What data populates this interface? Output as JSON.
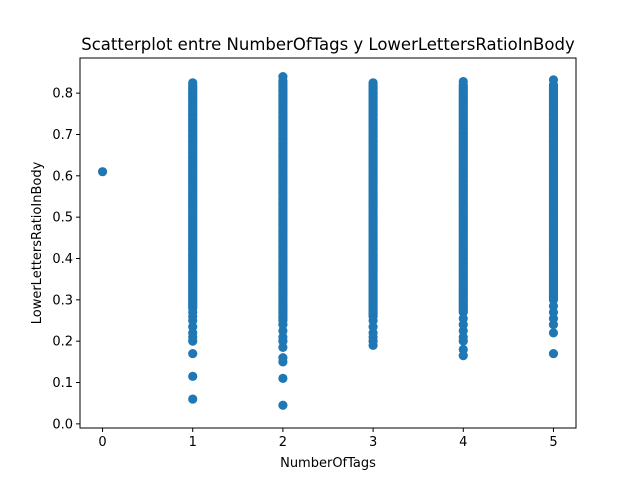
{
  "chart_data": {
    "type": "scatter",
    "title": "Scatterplot entre NumberOfTags y LowerLettersRatioInBody",
    "xlabel": "NumberOfTags",
    "ylabel": "LowerLettersRatioInBody",
    "xlim": [
      -0.25,
      5.25
    ],
    "ylim": [
      -0.01,
      0.885
    ],
    "x_ticks": [
      0,
      1,
      2,
      3,
      4,
      5
    ],
    "x_tick_labels": [
      "0",
      "1",
      "2",
      "3",
      "4",
      "5"
    ],
    "y_ticks": [
      0.0,
      0.1,
      0.2,
      0.3,
      0.4,
      0.5,
      0.6,
      0.7,
      0.8
    ],
    "y_tick_labels": [
      "0.0",
      "0.1",
      "0.2",
      "0.3",
      "0.4",
      "0.5",
      "0.6",
      "0.7",
      "0.8"
    ],
    "grid": false,
    "legend": "none",
    "marker_color": "#1f77b4",
    "columns": [
      {
        "x": 0,
        "dense_range": [],
        "points": [
          0.61
        ]
      },
      {
        "x": 1,
        "dense_range": [
          0.28,
          0.82
        ],
        "points": [
          0.06,
          0.115,
          0.17,
          0.2,
          0.21,
          0.22,
          0.235,
          0.25,
          0.26,
          0.27,
          0.825
        ]
      },
      {
        "x": 2,
        "dense_range": [
          0.25,
          0.83
        ],
        "points": [
          0.045,
          0.11,
          0.15,
          0.16,
          0.185,
          0.2,
          0.21,
          0.225,
          0.24,
          0.84
        ]
      },
      {
        "x": 3,
        "dense_range": [
          0.26,
          0.82
        ],
        "points": [
          0.19,
          0.2,
          0.21,
          0.22,
          0.235,
          0.25,
          0.825
        ]
      },
      {
        "x": 4,
        "dense_range": [
          0.27,
          0.82
        ],
        "points": [
          0.165,
          0.18,
          0.2,
          0.21,
          0.225,
          0.24,
          0.255,
          0.828
        ]
      },
      {
        "x": 5,
        "dense_range": [
          0.3,
          0.82
        ],
        "points": [
          0.17,
          0.22,
          0.24,
          0.255,
          0.27,
          0.285,
          0.832
        ]
      }
    ]
  }
}
